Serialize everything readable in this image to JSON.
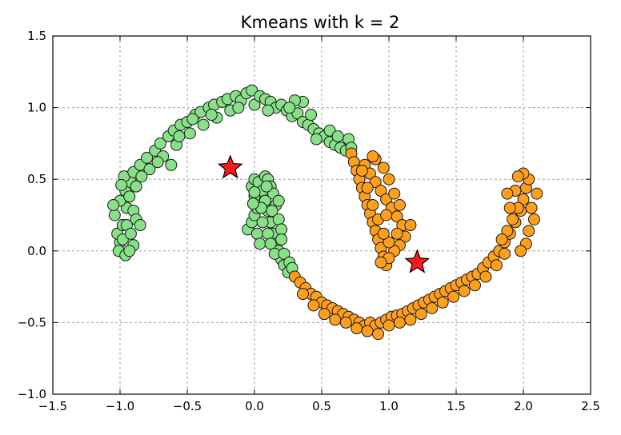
{
  "chart_data": {
    "type": "scatter",
    "title": "Kmeans with k = 2",
    "xlabel": "",
    "ylabel": "",
    "xlim": [
      -1.5,
      2.5
    ],
    "ylim": [
      -1.0,
      1.5
    ],
    "x_ticks": [
      "−1.5",
      "−1.0",
      "−0.5",
      "0.0",
      "0.5",
      "1.0",
      "1.5",
      "2.0",
      "2.5"
    ],
    "y_ticks": [
      "−1.0",
      "−0.5",
      "0.0",
      "0.5",
      "1.0",
      "1.5"
    ],
    "grid": true,
    "legend": "none",
    "colors": {
      "cluster_green": "#88e088",
      "cluster_orange": "#ff9f1c",
      "centroid": "#ff1a1a"
    },
    "series": [
      {
        "cluster": "green",
        "points": [
          [
            -1.0,
            0.06
          ],
          [
            -1.02,
            0.12
          ],
          [
            -0.98,
            0.18
          ],
          [
            -1.04,
            0.25
          ],
          [
            -0.95,
            0.3
          ],
          [
            -1.0,
            0.35
          ],
          [
            -0.96,
            0.42
          ],
          [
            -0.92,
            0.48
          ],
          [
            -0.97,
            0.52
          ],
          [
            -0.9,
            0.55
          ],
          [
            -0.85,
            0.6
          ],
          [
            -0.88,
            0.45
          ],
          [
            -0.93,
            0.38
          ],
          [
            -0.9,
            0.28
          ],
          [
            -0.95,
            0.18
          ],
          [
            -0.98,
            0.08
          ],
          [
            -1.01,
            0.0
          ],
          [
            -0.96,
            -0.03
          ],
          [
            -0.9,
            0.04
          ],
          [
            -0.92,
            0.12
          ],
          [
            -0.88,
            0.22
          ],
          [
            -0.93,
            0.0
          ],
          [
            -0.85,
            0.18
          ],
          [
            -1.05,
            0.32
          ],
          [
            -0.99,
            0.46
          ],
          [
            -0.8,
            0.65
          ],
          [
            -0.78,
            0.57
          ],
          [
            -0.74,
            0.7
          ],
          [
            -0.7,
            0.75
          ],
          [
            -0.68,
            0.66
          ],
          [
            -0.64,
            0.8
          ],
          [
            -0.6,
            0.84
          ],
          [
            -0.58,
            0.74
          ],
          [
            -0.55,
            0.88
          ],
          [
            -0.5,
            0.9
          ],
          [
            -0.48,
            0.82
          ],
          [
            -0.44,
            0.95
          ],
          [
            -0.4,
            0.97
          ],
          [
            -0.38,
            0.88
          ],
          [
            -0.34,
            1.0
          ],
          [
            -0.3,
            1.02
          ],
          [
            -0.28,
            0.93
          ],
          [
            -0.24,
            1.04
          ],
          [
            -0.2,
            1.06
          ],
          [
            -0.18,
            0.98
          ],
          [
            -0.14,
            1.08
          ],
          [
            -0.1,
            1.05
          ],
          [
            -0.06,
            1.1
          ],
          [
            -0.02,
            1.12
          ],
          [
            0.0,
            1.02
          ],
          [
            0.04,
            1.08
          ],
          [
            0.08,
            1.06
          ],
          [
            0.12,
            1.04
          ],
          [
            0.16,
            1.0
          ],
          [
            0.2,
            1.02
          ],
          [
            0.24,
            0.98
          ],
          [
            0.28,
            0.94
          ],
          [
            0.32,
            0.96
          ],
          [
            0.36,
            0.9
          ],
          [
            0.4,
            0.88
          ],
          [
            0.44,
            0.85
          ],
          [
            0.48,
            0.82
          ],
          [
            0.52,
            0.8
          ],
          [
            0.56,
            0.76
          ],
          [
            0.6,
            0.74
          ],
          [
            0.64,
            0.72
          ],
          [
            0.68,
            0.7
          ],
          [
            0.36,
            1.04
          ],
          [
            0.3,
            1.05
          ],
          [
            0.42,
            0.95
          ],
          [
            -0.62,
            0.6
          ],
          [
            -0.72,
            0.62
          ],
          [
            -0.84,
            0.52
          ],
          [
            -0.56,
            0.8
          ],
          [
            -0.46,
            0.92
          ],
          [
            -0.32,
            0.95
          ],
          [
            -0.12,
            1.0
          ],
          [
            0.1,
            0.98
          ],
          [
            0.26,
            1.0
          ],
          [
            0.46,
            0.78
          ],
          [
            0.56,
            0.84
          ],
          [
            0.7,
            0.78
          ],
          [
            0.72,
            0.72
          ],
          [
            0.62,
            0.8
          ],
          [
            -0.05,
            0.15
          ],
          [
            -0.02,
            0.2
          ],
          [
            0.0,
            0.25
          ],
          [
            0.02,
            0.3
          ],
          [
            0.0,
            0.38
          ],
          [
            -0.02,
            0.45
          ],
          [
            0.0,
            0.5
          ],
          [
            0.03,
            0.48
          ],
          [
            0.06,
            0.42
          ],
          [
            0.08,
            0.35
          ],
          [
            0.1,
            0.28
          ],
          [
            0.12,
            0.2
          ],
          [
            0.14,
            0.12
          ],
          [
            0.16,
            0.05
          ],
          [
            0.18,
            0.0
          ],
          [
            0.2,
            -0.06
          ],
          [
            0.22,
            -0.1
          ],
          [
            0.25,
            -0.15
          ],
          [
            0.06,
            0.2
          ],
          [
            0.02,
            0.12
          ],
          [
            0.1,
            0.12
          ],
          [
            0.04,
            0.05
          ],
          [
            0.08,
            0.52
          ],
          [
            0.1,
            0.5
          ],
          [
            0.12,
            0.45
          ],
          [
            0.14,
            0.4
          ],
          [
            0.16,
            0.32
          ],
          [
            0.18,
            0.22
          ],
          [
            0.2,
            0.15
          ],
          [
            0.05,
            0.3
          ],
          [
            0.12,
            0.05
          ],
          [
            0.15,
            -0.02
          ],
          [
            0.2,
            0.08
          ],
          [
            0.22,
            -0.02
          ],
          [
            0.26,
            -0.08
          ],
          [
            0.28,
            -0.12
          ],
          [
            0.18,
            0.35
          ],
          [
            0.13,
            0.28
          ],
          [
            0.09,
            0.45
          ],
          [
            -0.01,
            0.33
          ],
          [
            0.0,
            0.41
          ]
        ]
      },
      {
        "cluster": "orange",
        "points": [
          [
            0.3,
            -0.18
          ],
          [
            0.34,
            -0.22
          ],
          [
            0.38,
            -0.26
          ],
          [
            0.42,
            -0.3
          ],
          [
            0.46,
            -0.32
          ],
          [
            0.5,
            -0.36
          ],
          [
            0.54,
            -0.38
          ],
          [
            0.58,
            -0.4
          ],
          [
            0.62,
            -0.42
          ],
          [
            0.66,
            -0.44
          ],
          [
            0.7,
            -0.46
          ],
          [
            0.74,
            -0.48
          ],
          [
            0.78,
            -0.5
          ],
          [
            0.82,
            -0.52
          ],
          [
            0.86,
            -0.5
          ],
          [
            0.9,
            -0.52
          ],
          [
            0.94,
            -0.5
          ],
          [
            0.98,
            -0.48
          ],
          [
            1.02,
            -0.46
          ],
          [
            1.06,
            -0.45
          ],
          [
            1.1,
            -0.44
          ],
          [
            1.14,
            -0.42
          ],
          [
            1.18,
            -0.4
          ],
          [
            1.22,
            -0.38
          ],
          [
            1.26,
            -0.36
          ],
          [
            1.3,
            -0.34
          ],
          [
            1.34,
            -0.32
          ],
          [
            1.38,
            -0.3
          ],
          [
            1.42,
            -0.28
          ],
          [
            1.46,
            -0.26
          ],
          [
            1.5,
            -0.24
          ],
          [
            1.54,
            -0.22
          ],
          [
            1.58,
            -0.2
          ],
          [
            1.62,
            -0.18
          ],
          [
            1.66,
            -0.16
          ],
          [
            1.7,
            -0.12
          ],
          [
            1.74,
            -0.08
          ],
          [
            1.78,
            -0.04
          ],
          [
            1.82,
            0.0
          ],
          [
            1.86,
            0.06
          ],
          [
            1.9,
            0.12
          ],
          [
            1.94,
            0.2
          ],
          [
            1.98,
            0.28
          ],
          [
            2.0,
            0.36
          ],
          [
            2.02,
            0.44
          ],
          [
            2.04,
            0.5
          ],
          [
            2.0,
            0.54
          ],
          [
            1.96,
            0.52
          ],
          [
            1.94,
            0.42
          ],
          [
            1.96,
            0.3
          ],
          [
            1.92,
            0.22
          ],
          [
            1.88,
            0.14
          ],
          [
            1.84,
            0.08
          ],
          [
            2.06,
            0.3
          ],
          [
            2.08,
            0.22
          ],
          [
            2.04,
            0.14
          ],
          [
            2.02,
            0.05
          ],
          [
            1.98,
            0.0
          ],
          [
            2.1,
            0.4
          ],
          [
            1.9,
            0.3
          ],
          [
            1.88,
            0.4
          ],
          [
            1.86,
            -0.02
          ],
          [
            1.8,
            -0.1
          ],
          [
            0.36,
            -0.3
          ],
          [
            0.44,
            -0.38
          ],
          [
            0.52,
            -0.44
          ],
          [
            0.6,
            -0.48
          ],
          [
            0.68,
            -0.5
          ],
          [
            0.76,
            -0.54
          ],
          [
            0.84,
            -0.56
          ],
          [
            0.92,
            -0.58
          ],
          [
            1.0,
            -0.52
          ],
          [
            1.08,
            -0.5
          ],
          [
            1.16,
            -0.48
          ],
          [
            1.24,
            -0.44
          ],
          [
            1.32,
            -0.4
          ],
          [
            1.4,
            -0.36
          ],
          [
            1.48,
            -0.32
          ],
          [
            1.56,
            -0.28
          ],
          [
            1.64,
            -0.24
          ],
          [
            1.72,
            -0.18
          ],
          [
            0.72,
            0.68
          ],
          [
            0.74,
            0.62
          ],
          [
            0.76,
            0.56
          ],
          [
            0.78,
            0.5
          ],
          [
            0.8,
            0.44
          ],
          [
            0.82,
            0.38
          ],
          [
            0.84,
            0.32
          ],
          [
            0.86,
            0.26
          ],
          [
            0.88,
            0.2
          ],
          [
            0.9,
            0.14
          ],
          [
            0.92,
            0.08
          ],
          [
            0.94,
            0.02
          ],
          [
            0.96,
            -0.04
          ],
          [
            0.98,
            -0.1
          ],
          [
            0.82,
            0.6
          ],
          [
            0.86,
            0.54
          ],
          [
            0.9,
            0.48
          ],
          [
            0.94,
            0.42
          ],
          [
            0.98,
            0.36
          ],
          [
            1.02,
            0.3
          ],
          [
            1.06,
            0.24
          ],
          [
            1.1,
            0.18
          ],
          [
            1.12,
            0.1
          ],
          [
            1.08,
            0.04
          ],
          [
            1.04,
            0.0
          ],
          [
            1.0,
            0.06
          ],
          [
            0.96,
            0.12
          ],
          [
            0.92,
            0.22
          ],
          [
            0.88,
            0.32
          ],
          [
            0.84,
            0.44
          ],
          [
            0.8,
            0.56
          ],
          [
            0.9,
            0.64
          ],
          [
            0.96,
            0.58
          ],
          [
            1.0,
            0.5
          ],
          [
            1.04,
            0.4
          ],
          [
            1.08,
            0.32
          ],
          [
            1.16,
            0.18
          ],
          [
            1.0,
            -0.05
          ],
          [
            0.94,
            -0.08
          ],
          [
            0.88,
            0.66
          ],
          [
            0.98,
            0.25
          ],
          [
            1.06,
            0.12
          ]
        ]
      }
    ],
    "centroids": [
      [
        -0.18,
        0.58
      ],
      [
        1.21,
        -0.08
      ]
    ]
  }
}
